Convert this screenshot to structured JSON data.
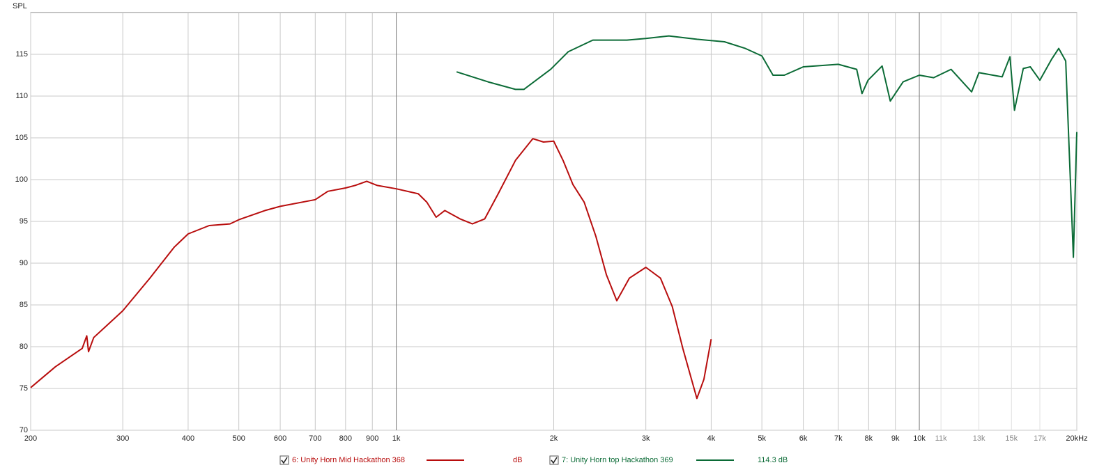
{
  "chart_data": {
    "type": "line",
    "y_label": "SPL",
    "xscale": "log",
    "xlim": [
      200,
      20000
    ],
    "ylim": [
      70,
      120
    ],
    "grid": true,
    "yticks": [
      70,
      75,
      80,
      85,
      90,
      95,
      100,
      105,
      110,
      115
    ],
    "xticks": [
      200,
      300,
      400,
      500,
      600,
      700,
      800,
      900,
      {
        "value": 1000,
        "label": "1k"
      },
      {
        "value": 2000,
        "label": "2k"
      },
      {
        "value": 3000,
        "label": "3k"
      },
      {
        "value": 4000,
        "label": "4k"
      },
      {
        "value": 5000,
        "label": "5k"
      },
      {
        "value": 6000,
        "label": "6k"
      },
      {
        "value": 7000,
        "label": "7k"
      },
      {
        "value": 8000,
        "label": "8k"
      },
      {
        "value": 9000,
        "label": "9k"
      },
      {
        "value": 10000,
        "label": "10k"
      },
      {
        "value": 20000,
        "label": "20kHz"
      }
    ],
    "xticks_minor": [
      {
        "value": 11000,
        "label": "11k"
      },
      {
        "value": 13000,
        "label": "13k"
      },
      {
        "value": 15000,
        "label": "15k"
      },
      {
        "value": 17000,
        "label": "17k"
      }
    ],
    "series": [
      {
        "name": "6: Unity Horn Mid Hackathon 368",
        "color": "#b80d0d",
        "legend_reading": "dB",
        "x": [
          200,
          223,
          251,
          256,
          258,
          264,
          277,
          300,
          338,
          376,
          400,
          439,
          481,
          500,
          561,
          600,
          700,
          740,
          800,
          834,
          878,
          920,
          1000,
          1102,
          1144,
          1192,
          1238,
          1324,
          1398,
          1476,
          1566,
          1690,
          1824,
          1912,
          2000,
          2084,
          2177,
          2287,
          2408,
          2522,
          2640,
          2790,
          3000,
          3200,
          3370,
          3530,
          3756,
          3874,
          4000
        ],
        "values": [
          75.1,
          77.6,
          79.8,
          81.3,
          79.4,
          81.1,
          82.3,
          84.3,
          88.2,
          91.9,
          93.5,
          94.5,
          94.7,
          95.2,
          96.3,
          96.8,
          97.6,
          98.6,
          99.0,
          99.3,
          99.8,
          99.3,
          98.9,
          98.3,
          97.3,
          95.5,
          96.3,
          95.3,
          94.7,
          95.3,
          98.3,
          102.3,
          104.9,
          104.5,
          104.6,
          102.3,
          99.4,
          97.3,
          93.2,
          88.6,
          85.5,
          88.2,
          89.5,
          88.2,
          84.8,
          79.8,
          73.8,
          76.1,
          80.9
        ]
      },
      {
        "name": "7: Unity Horn top Hackathon 369",
        "color": "#0b6b36",
        "legend_reading": "114.3 dB",
        "x": [
          1304,
          1498,
          1690,
          1754,
          1973,
          2131,
          2376,
          2760,
          3000,
          3320,
          3756,
          4240,
          4650,
          5000,
          5250,
          5520,
          6000,
          7000,
          7590,
          7770,
          7980,
          8490,
          8800,
          9310,
          10000,
          10650,
          11500,
          12590,
          13000,
          14400,
          14900,
          15200,
          15800,
          16300,
          17000,
          17900,
          18470,
          19050,
          19700,
          20000
        ],
        "values": [
          112.9,
          111.7,
          110.8,
          110.8,
          113.2,
          115.3,
          116.7,
          116.7,
          116.9,
          117.2,
          116.8,
          116.5,
          115.7,
          114.8,
          112.5,
          112.5,
          113.5,
          113.8,
          113.2,
          110.3,
          111.9,
          113.6,
          109.4,
          111.7,
          112.5,
          112.2,
          113.2,
          110.5,
          112.8,
          112.3,
          114.7,
          108.3,
          113.3,
          113.5,
          111.9,
          114.4,
          115.7,
          114.2,
          90.7,
          105.7
        ]
      }
    ]
  }
}
